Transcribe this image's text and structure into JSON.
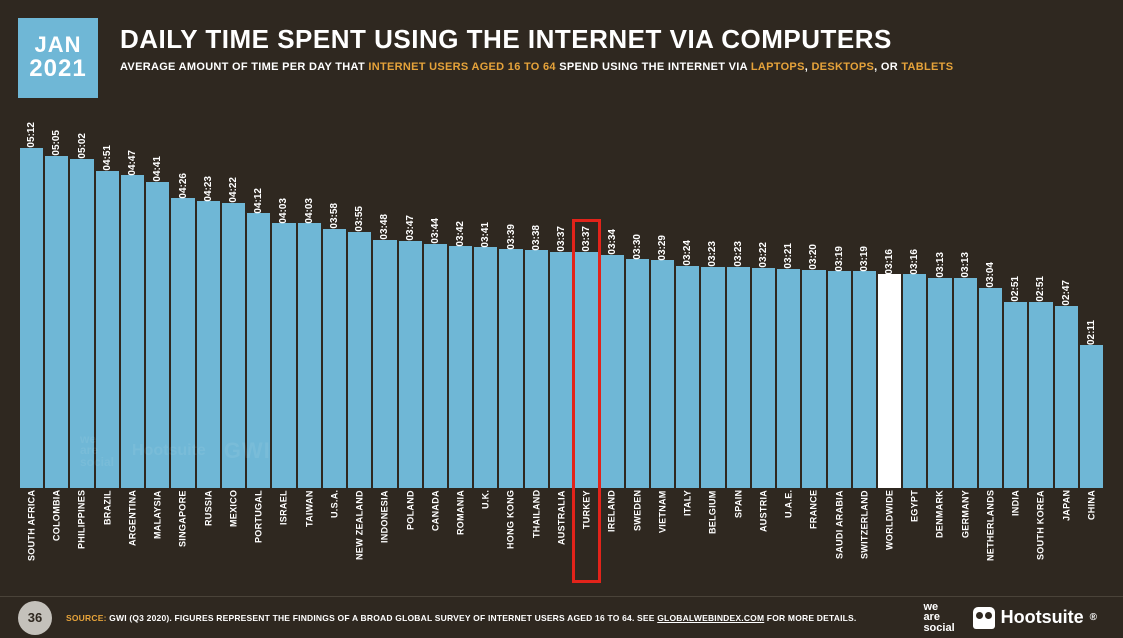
{
  "date": {
    "month": "JAN",
    "year": "2021"
  },
  "title": "DAILY TIME SPENT USING THE INTERNET VIA COMPUTERS",
  "subtitle_pre": "AVERAGE AMOUNT OF TIME PER DAY THAT ",
  "subtitle_hl1": "INTERNET USERS AGED 16 TO 64",
  "subtitle_mid": " SPEND USING THE INTERNET VIA ",
  "subtitle_hl2": "LAPTOPS",
  "subtitle_sep1": ", ",
  "subtitle_hl3": "DESKTOPS",
  "subtitle_sep2": ", OR ",
  "subtitle_hl4": "TABLETS",
  "chart": {
    "type": "bar",
    "bar_color": "#6fb7d6",
    "worldwide_bar_color": "#ffffff",
    "background_color": "#2f2820",
    "highlight_border_color": "#e2231a",
    "value_fontsize": 10,
    "label_fontsize": 9,
    "max_minutes": 312,
    "bars": [
      {
        "label": "SOUTH AFRICA",
        "value": "05:12",
        "minutes": 312
      },
      {
        "label": "COLOMBIA",
        "value": "05:05",
        "minutes": 305
      },
      {
        "label": "PHILIPPINES",
        "value": "05:02",
        "minutes": 302
      },
      {
        "label": "BRAZIL",
        "value": "04:51",
        "minutes": 291
      },
      {
        "label": "ARGENTINA",
        "value": "04:47",
        "minutes": 287
      },
      {
        "label": "MALAYSIA",
        "value": "04:41",
        "minutes": 281
      },
      {
        "label": "SINGAPORE",
        "value": "04:26",
        "minutes": 266
      },
      {
        "label": "RUSSIA",
        "value": "04:23",
        "minutes": 263
      },
      {
        "label": "MEXICO",
        "value": "04:22",
        "minutes": 262
      },
      {
        "label": "PORTUGAL",
        "value": "04:12",
        "minutes": 252
      },
      {
        "label": "ISRAEL",
        "value": "04:03",
        "minutes": 243
      },
      {
        "label": "TAIWAN",
        "value": "04:03",
        "minutes": 243
      },
      {
        "label": "U.S.A.",
        "value": "03:58",
        "minutes": 238
      },
      {
        "label": "NEW ZEALAND",
        "value": "03:55",
        "minutes": 235
      },
      {
        "label": "INDONESIA",
        "value": "03:48",
        "minutes": 228
      },
      {
        "label": "POLAND",
        "value": "03:47",
        "minutes": 227
      },
      {
        "label": "CANADA",
        "value": "03:44",
        "minutes": 224
      },
      {
        "label": "ROMANIA",
        "value": "03:42",
        "minutes": 222
      },
      {
        "label": "U.K.",
        "value": "03:41",
        "minutes": 221
      },
      {
        "label": "HONG KONG",
        "value": "03:39",
        "minutes": 219
      },
      {
        "label": "THAILAND",
        "value": "03:38",
        "minutes": 218
      },
      {
        "label": "AUSTRALIA",
        "value": "03:37",
        "minutes": 217
      },
      {
        "label": "TURKEY",
        "value": "03:37",
        "minutes": 217,
        "highlight": true
      },
      {
        "label": "IRELAND",
        "value": "03:34",
        "minutes": 214
      },
      {
        "label": "SWEDEN",
        "value": "03:30",
        "minutes": 210
      },
      {
        "label": "VIETNAM",
        "value": "03:29",
        "minutes": 209
      },
      {
        "label": "ITALY",
        "value": "03:24",
        "minutes": 204
      },
      {
        "label": "BELGIUM",
        "value": "03:23",
        "minutes": 203
      },
      {
        "label": "SPAIN",
        "value": "03:23",
        "minutes": 203
      },
      {
        "label": "AUSTRIA",
        "value": "03:22",
        "minutes": 202
      },
      {
        "label": "U.A.E.",
        "value": "03:21",
        "minutes": 201
      },
      {
        "label": "FRANCE",
        "value": "03:20",
        "minutes": 200
      },
      {
        "label": "SAUDI ARABIA",
        "value": "03:19",
        "minutes": 199
      },
      {
        "label": "SWITZERLAND",
        "value": "03:19",
        "minutes": 199
      },
      {
        "label": "WORLDWIDE",
        "value": "03:16",
        "minutes": 196,
        "worldwide": true
      },
      {
        "label": "EGYPT",
        "value": "03:16",
        "minutes": 196
      },
      {
        "label": "DENMARK",
        "value": "03:13",
        "minutes": 193
      },
      {
        "label": "GERMANY",
        "value": "03:13",
        "minutes": 193
      },
      {
        "label": "NETHERLANDS",
        "value": "03:04",
        "minutes": 184
      },
      {
        "label": "INDIA",
        "value": "02:51",
        "minutes": 171
      },
      {
        "label": "SOUTH KOREA",
        "value": "02:51",
        "minutes": 171
      },
      {
        "label": "JAPAN",
        "value": "02:47",
        "minutes": 167
      },
      {
        "label": "CHINA",
        "value": "02:11",
        "minutes": 131
      }
    ]
  },
  "watermark": {
    "was": "we\nare\nsocial",
    "hs": "Hootsuite",
    "gwi": "GWI"
  },
  "footer": {
    "page": "36",
    "source_label": "SOURCE:",
    "source_text_1": " GWI (Q3 2020). FIGURES REPRESENT THE FINDINGS OF A BROAD GLOBAL SURVEY OF INTERNET USERS AGED 16 TO 64. SEE ",
    "source_link": "GLOBALWEBINDEX.COM",
    "source_text_2": " FOR MORE DETAILS.",
    "was_line1": "we",
    "was_line2": "are",
    "was_line3": "social",
    "hootsuite": "Hootsuite"
  }
}
